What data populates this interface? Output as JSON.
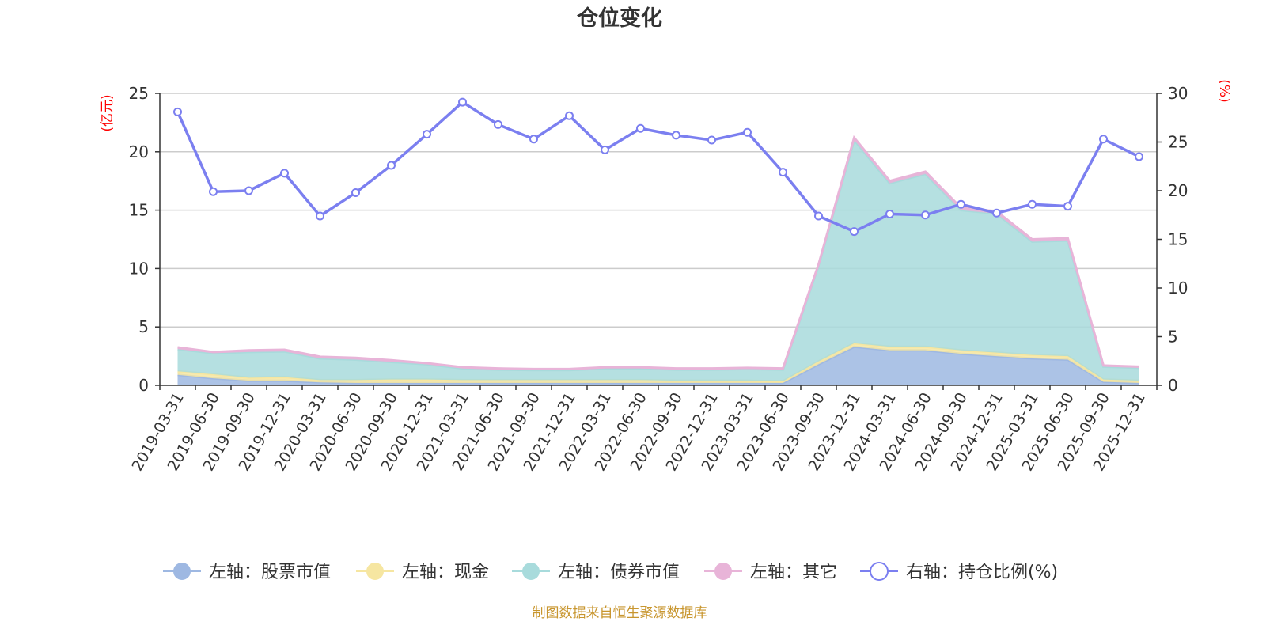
{
  "chart_data": {
    "type": "area",
    "title": "仓位变化",
    "left_axis": {
      "unit_label": "(亿元)",
      "ylim": [
        0,
        25
      ],
      "ticks": [
        0,
        5,
        10,
        15,
        20,
        25
      ]
    },
    "right_axis": {
      "unit_label": "(%)",
      "ylim": [
        0,
        30
      ],
      "ticks": [
        0,
        5,
        10,
        15,
        20,
        25,
        30
      ]
    },
    "categories": [
      "2019-03-31",
      "2019-06-30",
      "2019-09-30",
      "2019-12-31",
      "2020-03-31",
      "2020-06-30",
      "2020-09-30",
      "2020-12-31",
      "2021-03-31",
      "2021-06-30",
      "2021-09-30",
      "2021-12-31",
      "2022-03-31",
      "2022-06-30",
      "2022-09-30",
      "2022-12-31",
      "2023-03-31",
      "2023-06-30",
      "2023-09-30",
      "2023-12-31",
      "2024-03-31",
      "2024-06-30",
      "2024-09-30",
      "2024-12-31",
      "2025-03-31",
      "2025-06-30",
      "2025-09-30",
      "2025-12-31"
    ],
    "stacked_series": [
      {
        "name": "左轴：股票市值",
        "color": "#9eb8e2",
        "values": [
          0.9,
          0.6,
          0.4,
          0.4,
          0.25,
          0.2,
          0.2,
          0.2,
          0.2,
          0.2,
          0.2,
          0.2,
          0.2,
          0.2,
          0.2,
          0.2,
          0.2,
          0.2,
          1.8,
          3.3,
          3.0,
          3.0,
          2.7,
          2.5,
          2.3,
          2.2,
          0.3,
          0.2
        ]
      },
      {
        "name": "左轴：现金",
        "color": "#f6e6a1",
        "values": [
          0.3,
          0.35,
          0.25,
          0.3,
          0.2,
          0.25,
          0.3,
          0.3,
          0.25,
          0.25,
          0.25,
          0.25,
          0.25,
          0.25,
          0.2,
          0.2,
          0.2,
          0.15,
          0.25,
          0.3,
          0.3,
          0.3,
          0.3,
          0.3,
          0.3,
          0.3,
          0.2,
          0.2
        ]
      },
      {
        "name": "左轴：债券市值",
        "color": "#a8dbdc",
        "values": [
          1.9,
          1.8,
          2.2,
          2.2,
          1.85,
          1.75,
          1.5,
          1.3,
          1.0,
          0.9,
          0.85,
          0.85,
          1.0,
          1.0,
          0.95,
          0.95,
          1.0,
          1.0,
          8.2,
          17.4,
          14.0,
          14.8,
          12.0,
          11.9,
          9.7,
          9.9,
          1.1,
          1.1
        ]
      },
      {
        "name": "左轴：其它",
        "color": "#e8b4d8",
        "values": [
          0.15,
          0.1,
          0.15,
          0.15,
          0.15,
          0.15,
          0.15,
          0.1,
          0.1,
          0.1,
          0.1,
          0.1,
          0.1,
          0.1,
          0.1,
          0.1,
          0.1,
          0.1,
          0.1,
          0.2,
          0.2,
          0.2,
          0.2,
          0.2,
          0.2,
          0.2,
          0.1,
          0.1
        ]
      }
    ],
    "line_series": {
      "name": "右轴：持仓比例(%)",
      "color": "#7b7ff0",
      "values": [
        28.1,
        19.9,
        20.0,
        21.8,
        17.4,
        19.8,
        22.6,
        25.8,
        29.1,
        26.8,
        25.3,
        27.7,
        24.2,
        26.4,
        25.7,
        25.2,
        26.0,
        21.9,
        17.4,
        15.8,
        17.6,
        17.5,
        18.6,
        17.7,
        18.6,
        18.4,
        25.3,
        23.5
      ]
    },
    "legend_position": "bottom",
    "grid": "horizontal"
  },
  "source_note": "制图数据来自恒生聚源数据库"
}
